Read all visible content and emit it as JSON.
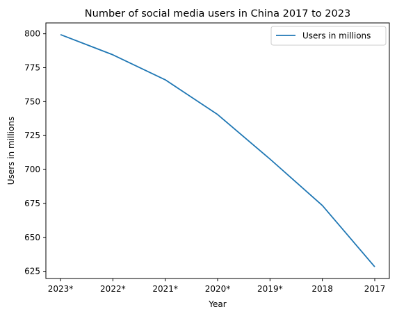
{
  "chart_data": {
    "type": "line",
    "title": "Number of social media users in China 2017 to 2023",
    "xlabel": "Year",
    "ylabel": "Users in millions",
    "categories": [
      "2023*",
      "2022*",
      "2021*",
      "2020*",
      "2019*",
      "2018",
      "2017"
    ],
    "series": [
      {
        "name": "Users in millions",
        "values": [
          799.4,
          784.5,
          766.1,
          740.5,
          707.7,
          673.5,
          628.3
        ]
      }
    ],
    "ylim": [
      619.7,
      808.0
    ],
    "yticks": [
      625,
      650,
      675,
      700,
      725,
      750,
      775,
      800
    ],
    "grid": false,
    "legend_position": "top-right",
    "colors": {
      "series": "#1f77b4",
      "axes": "#000000",
      "background": "#ffffff"
    }
  }
}
